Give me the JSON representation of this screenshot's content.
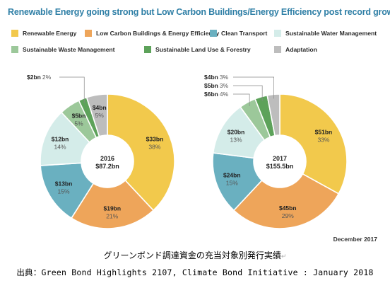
{
  "title": "Renewable Energy going strong but Low Carbon Buildings/Energy Efficiency post record growth",
  "legend": [
    {
      "label": "Renewable Energy",
      "color": "#f2c94c"
    },
    {
      "label": "Low Carbon Buildings & Energy Efficiency",
      "color": "#eea55a"
    },
    {
      "label": "Clean Transport",
      "color": "#6ab0c0"
    },
    {
      "label": "Sustainable Water Management",
      "color": "#d4ece9"
    },
    {
      "label": "Sustainable Waste Management",
      "color": "#9cc89a"
    },
    {
      "label": "Sustainable Land Use & Forestry",
      "color": "#5da25a"
    },
    {
      "label": "Adaptation",
      "color": "#bdbdbd"
    }
  ],
  "chart_data": [
    {
      "type": "pie",
      "center_label": {
        "year": "2016",
        "total": "$87.2bn"
      },
      "slices": [
        {
          "category": "Renewable Energy",
          "amount": "$33bn",
          "percent": 38,
          "percent_label": "38%"
        },
        {
          "category": "Low Carbon Buildings & Energy Efficiency",
          "amount": "$19bn",
          "percent": 21,
          "percent_label": "21%"
        },
        {
          "category": "Clean Transport",
          "amount": "$13bn",
          "percent": 15,
          "percent_label": "15%"
        },
        {
          "category": "Sustainable Water Management",
          "amount": "$12bn",
          "percent": 14,
          "percent_label": "14%"
        },
        {
          "category": "Sustainable Waste Management",
          "amount": "$5bn",
          "percent": 5,
          "percent_label": "5%"
        },
        {
          "category": "Sustainable Land Use & Forestry",
          "amount": "$2bn",
          "percent": 2,
          "percent_label": "2%"
        },
        {
          "category": "Adaptation",
          "amount": "$4bn",
          "percent": 5,
          "percent_label": "5%"
        }
      ]
    },
    {
      "type": "pie",
      "center_label": {
        "year": "2017",
        "total": "$155.5bn"
      },
      "slices": [
        {
          "category": "Renewable Energy",
          "amount": "$51bn",
          "percent": 33,
          "percent_label": "33%"
        },
        {
          "category": "Low Carbon Buildings & Energy Efficiency",
          "amount": "$45bn",
          "percent": 29,
          "percent_label": "29%"
        },
        {
          "category": "Clean Transport",
          "amount": "$24bn",
          "percent": 15,
          "percent_label": "15%"
        },
        {
          "category": "Sustainable Water Management",
          "amount": "$20bn",
          "percent": 13,
          "percent_label": "13%"
        },
        {
          "category": "Sustainable Waste Management",
          "amount": "$6bn",
          "percent": 4,
          "percent_label": "4%"
        },
        {
          "category": "Sustainable Land Use & Forestry",
          "amount": "$5bn",
          "percent": 3,
          "percent_label": "3%"
        },
        {
          "category": "Adaptation",
          "amount": "$4bn",
          "percent": 3,
          "percent_label": "3%"
        }
      ]
    }
  ],
  "date_label": "December 2017",
  "caption_line1": "グリーンボンド調達資金の充当対象別発行実績",
  "caption_line2": "出典：Green Bond Highlights 2107, Climate Bond Initiative : January 2018"
}
